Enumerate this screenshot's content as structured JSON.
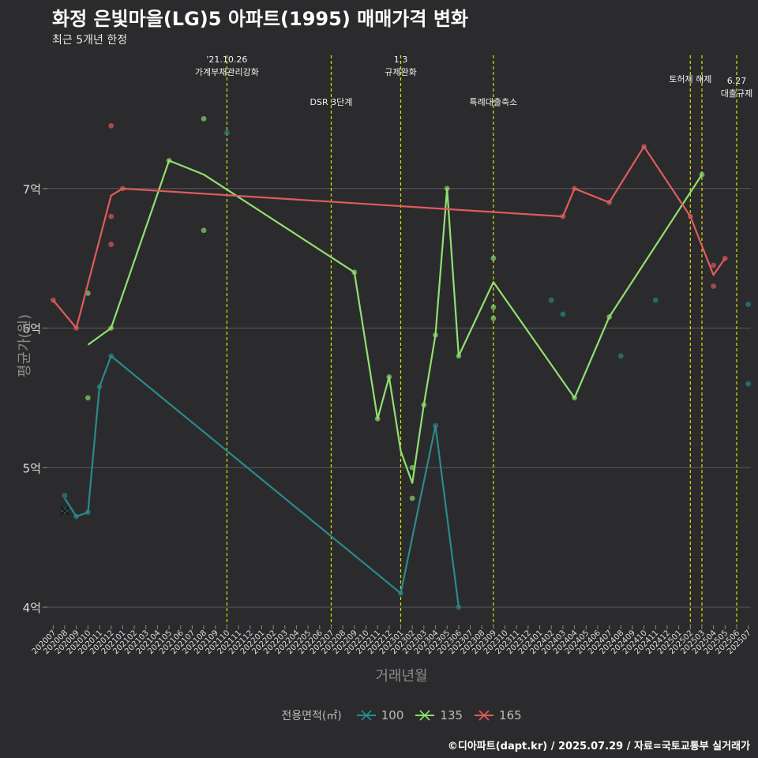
{
  "title": "화정 은빛마을(LG)5 아파트(1995) 매매가격 변화",
  "subtitle": "최근 5개년 한정",
  "caption": "©디아파트(dapt.kr) / 2025.07.29 / 자료=국토교통부 실거래가",
  "chart_data": {
    "type": "line",
    "xlabel": "거래년월",
    "ylabel": "평균가(원)",
    "ylim": [
      3.87,
      8.0
    ],
    "y_ticks": [
      4,
      5,
      6,
      7
    ],
    "y_tick_labels": [
      "4억",
      "5억",
      "6억",
      "7억"
    ],
    "grid": "horizontal",
    "legend_position": "bottom",
    "legend_title": "전용면적(㎡)",
    "categories": [
      "202007",
      "202008",
      "202009",
      "202010",
      "202011",
      "202012",
      "202101",
      "202102",
      "202103",
      "202104",
      "202105",
      "202106",
      "202107",
      "202108",
      "202109",
      "202110",
      "202111",
      "202112",
      "202201",
      "202202",
      "202203",
      "202204",
      "202205",
      "202206",
      "202207",
      "202208",
      "202209",
      "202210",
      "202211",
      "202212",
      "202301",
      "202302",
      "202303",
      "202304",
      "202305",
      "202306",
      "202307",
      "202308",
      "202309",
      "202310",
      "202311",
      "202312",
      "202401",
      "202402",
      "202403",
      "202404",
      "202405",
      "202406",
      "202407",
      "202408",
      "202409",
      "202410",
      "202411",
      "202412",
      "202501",
      "202502",
      "202503",
      "202504",
      "202505",
      "202506",
      "202507"
    ],
    "series": [
      {
        "name": "100",
        "color": "#2a8a8c",
        "line": [
          [
            "202008",
            4.78
          ],
          [
            "202009",
            4.65
          ],
          [
            "202010",
            4.68
          ],
          [
            "202011",
            5.58
          ],
          [
            "202012",
            5.8
          ],
          [
            "202301",
            4.1
          ],
          [
            "202304",
            5.3
          ],
          [
            "202306",
            4.0
          ]
        ],
        "points": [
          [
            "202008",
            4.8
          ],
          [
            "202008",
            4.69
          ],
          [
            "202009",
            4.65
          ],
          [
            "202010",
            4.68
          ],
          [
            "202011",
            5.58
          ],
          [
            "202012",
            5.8
          ],
          [
            "202110",
            7.4
          ],
          [
            "202301",
            4.1
          ],
          [
            "202304",
            5.3
          ],
          [
            "202306",
            4.0
          ],
          [
            "202402",
            6.2
          ],
          [
            "202403",
            6.1
          ],
          [
            "202408",
            5.8
          ],
          [
            "202411",
            6.2
          ],
          [
            "202507",
            6.17
          ],
          [
            "202507",
            5.6
          ]
        ]
      },
      {
        "name": "135",
        "color": "#90e070",
        "line": [
          [
            "202010",
            5.88
          ],
          [
            "202012",
            6.0
          ],
          [
            "202105",
            7.2
          ],
          [
            "202108",
            7.1
          ],
          [
            "202209",
            6.4
          ],
          [
            "202211",
            5.35
          ],
          [
            "202212",
            5.65
          ],
          [
            "202301",
            5.12
          ],
          [
            "202302",
            4.89
          ],
          [
            "202303",
            5.45
          ],
          [
            "202304",
            5.95
          ],
          [
            "202305",
            7.0
          ],
          [
            "202306",
            5.8
          ],
          [
            "202309",
            6.33
          ],
          [
            "202404",
            5.5
          ],
          [
            "202407",
            6.08
          ],
          [
            "202503",
            7.1
          ]
        ],
        "points": [
          [
            "202010",
            6.25
          ],
          [
            "202010",
            5.5
          ],
          [
            "202012",
            6.0
          ],
          [
            "202105",
            7.2
          ],
          [
            "202108",
            7.5
          ],
          [
            "202108",
            6.7
          ],
          [
            "202209",
            6.4
          ],
          [
            "202211",
            5.35
          ],
          [
            "202212",
            5.65
          ],
          [
            "202302",
            5.0
          ],
          [
            "202302",
            4.78
          ],
          [
            "202303",
            5.45
          ],
          [
            "202304",
            5.95
          ],
          [
            "202305",
            7.0
          ],
          [
            "202306",
            5.8
          ],
          [
            "202309",
            6.5
          ],
          [
            "202309",
            6.15
          ],
          [
            "202309",
            6.07
          ],
          [
            "202404",
            5.5
          ],
          [
            "202407",
            6.08
          ],
          [
            "202503",
            7.1
          ]
        ]
      },
      {
        "name": "165",
        "color": "#e05c5c",
        "line": [
          [
            "202007",
            6.2
          ],
          [
            "202009",
            6.0
          ],
          [
            "202012",
            6.95
          ],
          [
            "202101",
            7.0
          ],
          [
            "202403",
            6.8
          ],
          [
            "202404",
            7.0
          ],
          [
            "202407",
            6.9
          ],
          [
            "202410",
            7.3
          ],
          [
            "202502",
            6.8
          ],
          [
            "202504",
            6.38
          ],
          [
            "202505",
            6.5
          ]
        ],
        "points": [
          [
            "202007",
            6.2
          ],
          [
            "202009",
            6.0
          ],
          [
            "202012",
            7.45
          ],
          [
            "202012",
            6.8
          ],
          [
            "202012",
            6.6
          ],
          [
            "202101",
            7.0
          ],
          [
            "202403",
            6.8
          ],
          [
            "202404",
            7.0
          ],
          [
            "202407",
            6.9
          ],
          [
            "202410",
            7.3
          ],
          [
            "202502",
            6.8
          ],
          [
            "202504",
            6.45
          ],
          [
            "202504",
            6.3
          ],
          [
            "202505",
            6.5
          ]
        ]
      }
    ],
    "annotations": [
      {
        "x": "202110",
        "lines": [
          "'21.10.26",
          "가계부채관리강화"
        ]
      },
      {
        "x": "202207",
        "lines": [
          "DSR 3단계"
        ]
      },
      {
        "x": "202301",
        "lines": [
          "1.3",
          "규제완화"
        ]
      },
      {
        "x": "202309",
        "lines": [
          "특례대출축소"
        ]
      },
      {
        "x": "202502",
        "lines": [
          "토허제 해제"
        ]
      },
      {
        "x": "202503",
        "lines": []
      },
      {
        "x": "202506",
        "lines": [
          "6.27",
          "대출규제"
        ]
      }
    ]
  }
}
